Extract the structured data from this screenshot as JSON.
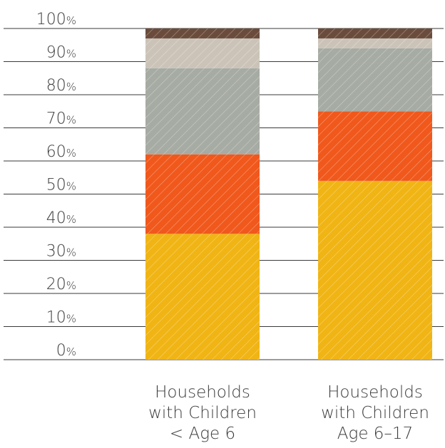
{
  "chart_data": {
    "type": "bar",
    "stacked": true,
    "categories": [
      [
        "Households",
        "with Children",
        "< Age 6"
      ],
      [
        "Households",
        "with Children",
        "Age 6–17"
      ]
    ],
    "series": [
      {
        "color": "#f0b414",
        "values": [
          38,
          54
        ]
      },
      {
        "color": "#f0581c",
        "values": [
          24,
          21
        ]
      },
      {
        "color": "#a6aba3",
        "values": [
          26,
          19
        ]
      },
      {
        "color": "#cbc3b8",
        "values": [
          9,
          3
        ]
      },
      {
        "color": "#6b4c3c",
        "values": [
          3,
          3
        ]
      }
    ],
    "yticks": [
      0,
      10,
      20,
      30,
      40,
      50,
      60,
      70,
      80,
      90,
      100
    ],
    "ytick_unit": "%",
    "ylim": [
      0,
      100
    ],
    "hatched": true,
    "grid": true,
    "legend": "none"
  }
}
